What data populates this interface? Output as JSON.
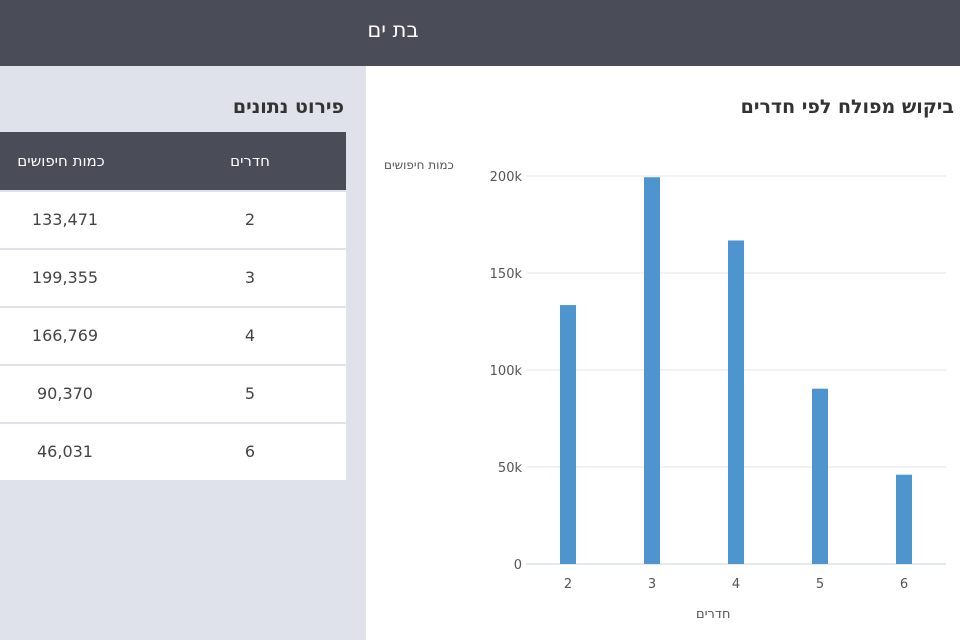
{
  "header": {
    "title": "בת ים"
  },
  "table": {
    "title": "פירוט נתונים",
    "columns": {
      "rooms": "חדרים",
      "searches": "כמות חיפושים"
    },
    "rows": [
      {
        "rooms": "2",
        "searches": "133,471"
      },
      {
        "rooms": "3",
        "searches": "199,355"
      },
      {
        "rooms": "4",
        "searches": "166,769"
      },
      {
        "rooms": "5",
        "searches": "90,370"
      },
      {
        "rooms": "6",
        "searches": "46,031"
      }
    ]
  },
  "chart_data": {
    "type": "bar",
    "title": "ביקוש מפולח לפי חדרים",
    "xlabel": "חדרים",
    "ylabel": "כמות חיפושים",
    "categories": [
      "2",
      "3",
      "4",
      "5",
      "6"
    ],
    "values": [
      133471,
      199355,
      166769,
      90370,
      46031
    ],
    "ylim": [
      0,
      200000
    ],
    "yticks": [
      0,
      50000,
      100000,
      150000,
      200000
    ],
    "ytick_labels": [
      "0",
      "50k",
      "100k",
      "150k",
      "200k"
    ],
    "bar_color": "#4e95cf",
    "grid": true,
    "legend": "none"
  }
}
